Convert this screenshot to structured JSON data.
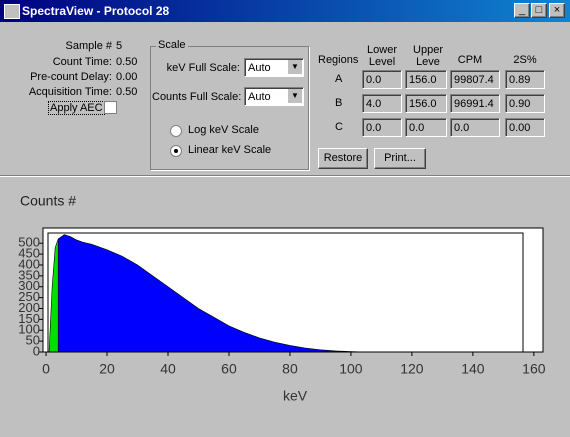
{
  "window": {
    "title": "SpectraView - Protocol 28"
  },
  "info": {
    "rows": [
      [
        "Sample #",
        "5"
      ],
      [
        "Count Time:",
        "0.50"
      ],
      [
        "Pre-count Delay:",
        "0.00"
      ],
      [
        "Acquisition Time:",
        "0.50"
      ]
    ],
    "apply_aec": "Apply AEC"
  },
  "scale": {
    "title": "Scale",
    "kev_label": "keV Full Scale:",
    "kev_value": "Auto",
    "counts_label": "Counts Full Scale:",
    "counts_value": "Auto",
    "log": "Log keV Scale",
    "linear": "Linear keV Scale"
  },
  "regions": {
    "headers": [
      "Regions",
      "Lower Level",
      "Upper Leve",
      "CPM",
      "2S%"
    ],
    "rows": [
      [
        "A",
        "0.0",
        "156.0",
        "99807.4",
        "0.89"
      ],
      [
        "B",
        "4.0",
        "156.0",
        "96991.4",
        "0.90"
      ],
      [
        "C",
        "0.0",
        "0.0",
        "0.0",
        "0.00"
      ]
    ]
  },
  "buttons": [
    "Restore",
    "Print..."
  ],
  "chart_data": {
    "type": "area",
    "ylabel": "Counts #",
    "xlabel": "keV",
    "x": [
      1,
      2,
      3,
      4,
      6,
      8,
      10,
      12,
      15,
      20,
      25,
      30,
      35,
      40,
      45,
      50,
      55,
      60,
      65,
      70,
      75,
      80,
      85,
      90,
      95,
      100,
      105
    ],
    "series": [
      {
        "color": "#00e000",
        "values": [
          0,
          300,
          480,
          520,
          null,
          null,
          null,
          null,
          null,
          null,
          null,
          null,
          null,
          null,
          null,
          null,
          null,
          null,
          null,
          null,
          null,
          null,
          null,
          null,
          null,
          null,
          null
        ]
      },
      {
        "color": "#0000ff",
        "values": [
          null,
          null,
          null,
          520,
          540,
          530,
          515,
          505,
          495,
          470,
          440,
          400,
          350,
          300,
          250,
          200,
          160,
          120,
          90,
          65,
          45,
          30,
          18,
          10,
          5,
          2,
          0
        ]
      }
    ],
    "xlim": [
      -1,
      163
    ],
    "ylim": [
      0,
      570
    ],
    "xticks": [
      0,
      20,
      40,
      60,
      80,
      100,
      120,
      140,
      160
    ],
    "yticks": [
      0,
      50,
      100,
      150,
      200,
      250,
      300,
      350,
      400,
      450,
      500
    ]
  }
}
